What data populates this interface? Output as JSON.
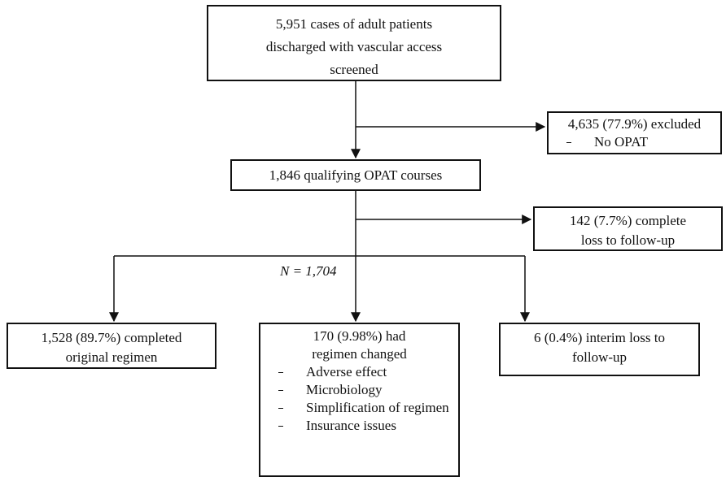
{
  "nodes": [
    {
      "lines": [
        "5,951 cases of adult patients",
        "discharged with vascular access",
        "screened"
      ]
    },
    {
      "lines": [
        "4,635 (77.9%) excluded"
      ],
      "items": [
        "No OPAT"
      ]
    },
    {
      "lines": [
        "1,846 qualifying OPAT courses"
      ]
    },
    {
      "lines": [
        "142 (7.7%) complete",
        "loss to follow-up"
      ]
    },
    {
      "lines": [
        "1,528 (89.7%) completed",
        "original regimen"
      ]
    },
    {
      "lines": [
        "170 (9.98%) had",
        "regimen changed"
      ],
      "items": [
        "Adverse effect",
        "Microbiology",
        "Simplification of regimen",
        "Insurance issues"
      ]
    },
    {
      "lines": [
        "6 (0.4%) interim loss to",
        "follow-up"
      ]
    }
  ],
  "annotation": "N = 1,704"
}
